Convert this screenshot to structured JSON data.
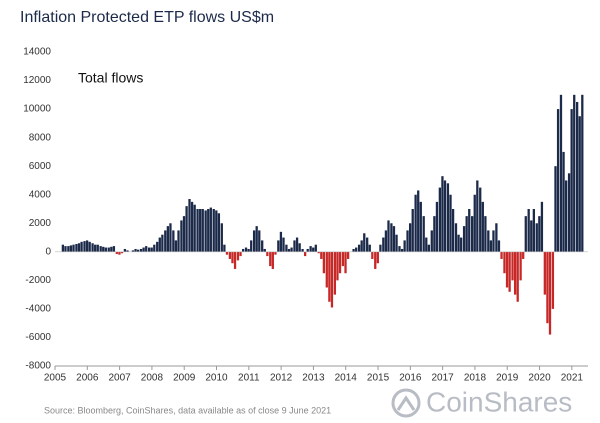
{
  "chart_data": {
    "type": "bar",
    "title": "Inflation Protected ETP flows US$m",
    "annotation": "Total flows",
    "source": "Source: Bloomberg, CoinShares, data available as of close 9 June 2021",
    "logo": "CoinShares",
    "positive_color": "#1c2a4a",
    "negative_color": "#c62828",
    "xlim": [
      2005,
      2021.5
    ],
    "xticks": [
      2005,
      2006,
      2007,
      2008,
      2009,
      2010,
      2011,
      2012,
      2013,
      2014,
      2015,
      2016,
      2017,
      2018,
      2019,
      2020,
      2021
    ],
    "ylim": [
      -8000,
      14000
    ],
    "yticks": [
      -8000,
      -6000,
      -4000,
      -2000,
      0,
      2000,
      4000,
      6000,
      8000,
      10000,
      12000,
      14000
    ],
    "x": [
      2005.25,
      2005.33,
      2005.42,
      2005.5,
      2005.58,
      2005.67,
      2005.75,
      2005.83,
      2005.92,
      2006,
      2006.08,
      2006.17,
      2006.25,
      2006.33,
      2006.42,
      2006.5,
      2006.58,
      2006.67,
      2006.75,
      2006.83,
      2006.92,
      2007,
      2007.08,
      2007.17,
      2007.25,
      2007.33,
      2007.42,
      2007.5,
      2007.58,
      2007.67,
      2007.75,
      2007.83,
      2007.92,
      2008,
      2008.08,
      2008.17,
      2008.25,
      2008.33,
      2008.42,
      2008.5,
      2008.58,
      2008.67,
      2008.75,
      2008.83,
      2008.92,
      2009,
      2009.08,
      2009.17,
      2009.25,
      2009.33,
      2009.42,
      2009.5,
      2009.58,
      2009.67,
      2009.75,
      2009.83,
      2009.92,
      2010,
      2010.08,
      2010.17,
      2010.25,
      2010.33,
      2010.42,
      2010.5,
      2010.58,
      2010.67,
      2010.75,
      2010.83,
      2010.92,
      2011,
      2011.08,
      2011.17,
      2011.25,
      2011.33,
      2011.42,
      2011.5,
      2011.58,
      2011.67,
      2011.75,
      2011.83,
      2011.92,
      2012,
      2012.08,
      2012.17,
      2012.25,
      2012.33,
      2012.42,
      2012.5,
      2012.58,
      2012.67,
      2012.75,
      2012.83,
      2012.92,
      2013,
      2013.08,
      2013.17,
      2013.25,
      2013.33,
      2013.42,
      2013.5,
      2013.58,
      2013.67,
      2013.75,
      2013.83,
      2013.92,
      2014,
      2014.08,
      2014.17,
      2014.25,
      2014.33,
      2014.42,
      2014.5,
      2014.58,
      2014.67,
      2014.75,
      2014.83,
      2014.92,
      2015,
      2015.08,
      2015.17,
      2015.25,
      2015.33,
      2015.42,
      2015.5,
      2015.58,
      2015.67,
      2015.75,
      2015.83,
      2015.92,
      2016,
      2016.08,
      2016.17,
      2016.25,
      2016.33,
      2016.42,
      2016.5,
      2016.58,
      2016.67,
      2016.75,
      2016.83,
      2016.92,
      2017,
      2017.08,
      2017.17,
      2017.25,
      2017.33,
      2017.42,
      2017.5,
      2017.58,
      2017.67,
      2017.75,
      2017.83,
      2017.92,
      2018,
      2018.08,
      2018.17,
      2018.25,
      2018.33,
      2018.42,
      2018.5,
      2018.58,
      2018.67,
      2018.75,
      2018.83,
      2018.92,
      2019,
      2019.08,
      2019.17,
      2019.25,
      2019.33,
      2019.42,
      2019.5,
      2019.58,
      2019.67,
      2019.75,
      2019.83,
      2019.92,
      2020,
      2020.08,
      2020.17,
      2020.25,
      2020.33,
      2020.42,
      2020.5,
      2020.58,
      2020.67,
      2020.75,
      2020.83,
      2020.92,
      2021,
      2021.08,
      2021.17,
      2021.25,
      2021.33
    ],
    "values": [
      500,
      400,
      400,
      450,
      500,
      550,
      600,
      700,
      750,
      800,
      700,
      600,
      500,
      500,
      400,
      350,
      300,
      300,
      350,
      400,
      -150,
      -200,
      -100,
      200,
      100,
      0,
      100,
      200,
      150,
      200,
      300,
      400,
      300,
      300,
      500,
      700,
      1000,
      1200,
      1500,
      1800,
      2000,
      1500,
      800,
      1500,
      2200,
      2500,
      3200,
      3700,
      3500,
      3300,
      3000,
      3000,
      3000,
      2900,
      3000,
      3100,
      3000,
      2900,
      2700,
      2000,
      500,
      -200,
      -500,
      -800,
      -1200,
      -600,
      -300,
      200,
      300,
      200,
      800,
      1500,
      1800,
      1500,
      800,
      200,
      -300,
      -1000,
      -1200,
      -200,
      800,
      1400,
      1000,
      500,
      200,
      300,
      800,
      1000,
      600,
      200,
      -300,
      200,
      400,
      300,
      500,
      -100,
      -500,
      -1500,
      -2500,
      -3500,
      -3900,
      -3000,
      -2000,
      -1500,
      -1000,
      -1500,
      -500,
      0,
      200,
      300,
      500,
      800,
      1300,
      1000,
      500,
      -500,
      -1200,
      -800,
      500,
      1000,
      1500,
      2200,
      2000,
      1800,
      1200,
      400,
      200,
      800,
      1500,
      2000,
      3000,
      4000,
      4300,
      3500,
      2500,
      1000,
      500,
      1500,
      2500,
      3500,
      4500,
      5300,
      5000,
      4800,
      4000,
      3000,
      2000,
      1200,
      1000,
      1800,
      2500,
      3000,
      2500,
      4000,
      5000,
      4500,
      3500,
      2500,
      1500,
      800,
      1500,
      2000,
      800,
      -500,
      -1500,
      -2500,
      -2800,
      -2000,
      -3000,
      -3500,
      -2000,
      -500,
      2500,
      3000,
      2200,
      3000,
      2000,
      2500,
      3500,
      -3000,
      -5000,
      -5800,
      -4000,
      6000,
      10000,
      11000,
      7000,
      5000,
      5500,
      10000,
      11000,
      10500,
      9500,
      11000
    ]
  }
}
